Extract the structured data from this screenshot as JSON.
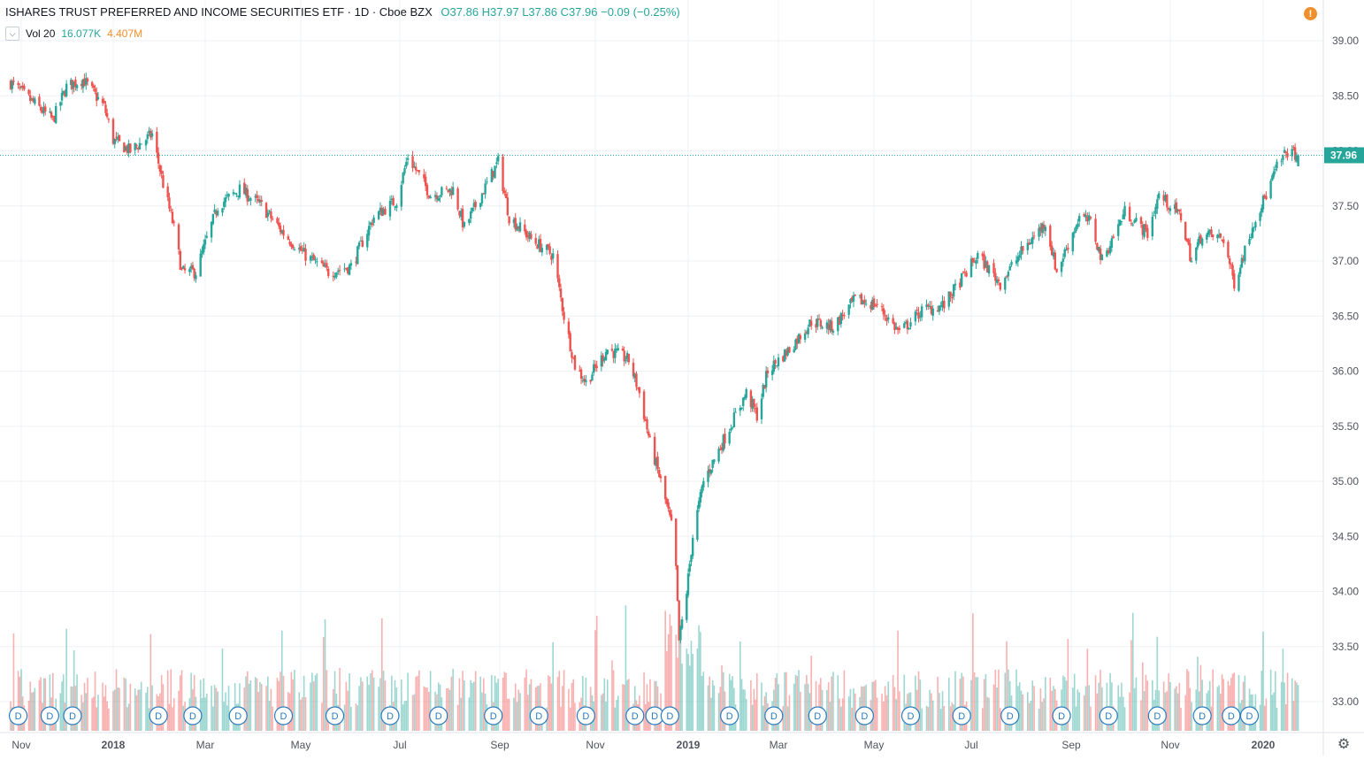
{
  "header": {
    "title": "ISHARES TRUST PREFERRED AND INCOME SECURITIES ETF · 1D · Cboe BZX",
    "ohlc": "O37.86  H37.97  L37.86  C37.96  −0.09 (−0.25%)"
  },
  "volume_indicator": {
    "label": "Vol 20",
    "value_1": "16.077K",
    "value_2": "4.407M"
  },
  "current_price_label": "37.96",
  "colors": {
    "up": "#26a69a",
    "down": "#ef5350",
    "price_line": "#26a69a",
    "event_marker": "#2a7bbd",
    "alert": "#f0902c"
  },
  "icons": {
    "alert": "alert-icon",
    "settings": "gear-icon",
    "toggle": "chevron-down-icon"
  },
  "event_marker_letter": "D",
  "chart_data": {
    "type": "candlestick",
    "title": "ISHARES TRUST PREFERRED AND INCOME SECURITIES ETF",
    "interval": "1D",
    "exchange": "Cboe BZX",
    "last": {
      "open": 37.86,
      "high": 37.97,
      "low": 37.86,
      "close": 37.96,
      "change": -0.09,
      "change_pct": -0.25
    },
    "y_ticks": [
      "39.00",
      "38.50",
      "38.00",
      "37.50",
      "37.00",
      "36.50",
      "36.00",
      "35.50",
      "35.00",
      "34.50",
      "34.00",
      "33.50",
      "33.00"
    ],
    "ylim": [
      32.8,
      39.2
    ],
    "x_ticks": [
      "Nov",
      "2018",
      "Mar",
      "May",
      "Jul",
      "Sep",
      "Nov",
      "2019",
      "Mar",
      "May",
      "Jul",
      "Sep",
      "Nov",
      "2020"
    ],
    "x_tick_dates": [
      "2017-11-01",
      "2018-01-01",
      "2018-03-01",
      "2018-05-01",
      "2018-07-01",
      "2018-09-01",
      "2018-11-01",
      "2019-01-01",
      "2019-03-01",
      "2019-05-01",
      "2019-07-01",
      "2019-09-01",
      "2019-11-01",
      "2020-01-01"
    ],
    "xlim": [
      "2017-10-25",
      "2020-01-28"
    ],
    "close_series": [
      [
        "2017-10-25",
        38.62
      ],
      [
        "2017-11-08",
        38.45
      ],
      [
        "2017-11-22",
        38.28
      ],
      [
        "2017-12-01",
        38.58
      ],
      [
        "2017-12-12",
        38.65
      ],
      [
        "2017-12-26",
        38.4
      ],
      [
        "2018-01-01",
        38.1
      ],
      [
        "2018-01-12",
        38.0
      ],
      [
        "2018-01-26",
        38.15
      ],
      [
        "2018-02-02",
        37.7
      ],
      [
        "2018-02-09",
        37.3
      ],
      [
        "2018-02-14",
        36.9
      ],
      [
        "2018-02-23",
        36.9
      ],
      [
        "2018-03-09",
        37.5
      ],
      [
        "2018-03-23",
        37.65
      ],
      [
        "2018-04-06",
        37.5
      ],
      [
        "2018-04-20",
        37.25
      ],
      [
        "2018-05-04",
        37.05
      ],
      [
        "2018-05-18",
        36.9
      ],
      [
        "2018-06-01",
        36.95
      ],
      [
        "2018-06-15",
        37.4
      ],
      [
        "2018-06-29",
        37.55
      ],
      [
        "2018-07-06",
        37.95
      ],
      [
        "2018-07-20",
        37.6
      ],
      [
        "2018-08-03",
        37.65
      ],
      [
        "2018-08-10",
        37.3
      ],
      [
        "2018-08-24",
        37.7
      ],
      [
        "2018-08-31",
        37.9
      ],
      [
        "2018-09-07",
        37.4
      ],
      [
        "2018-09-21",
        37.2
      ],
      [
        "2018-10-05",
        37.05
      ],
      [
        "2018-10-12",
        36.5
      ],
      [
        "2018-10-19",
        36.05
      ],
      [
        "2018-10-26",
        35.9
      ],
      [
        "2018-11-09",
        36.2
      ],
      [
        "2018-11-23",
        36.1
      ],
      [
        "2018-11-30",
        35.8
      ],
      [
        "2018-12-07",
        35.35
      ],
      [
        "2018-12-14",
        35.0
      ],
      [
        "2018-12-21",
        34.6
      ],
      [
        "2018-12-24",
        34.2
      ],
      [
        "2018-12-26",
        33.55
      ],
      [
        "2018-12-31",
        34.0
      ],
      [
        "2019-01-04",
        34.5
      ],
      [
        "2019-01-11",
        35.0
      ],
      [
        "2019-01-25",
        35.4
      ],
      [
        "2019-02-08",
        35.8
      ],
      [
        "2019-02-15",
        35.6
      ],
      [
        "2019-02-22",
        36.0
      ],
      [
        "2019-03-08",
        36.2
      ],
      [
        "2019-03-22",
        36.45
      ],
      [
        "2019-04-05",
        36.4
      ],
      [
        "2019-04-19",
        36.65
      ],
      [
        "2019-05-03",
        36.6
      ],
      [
        "2019-05-17",
        36.35
      ],
      [
        "2019-05-31",
        36.55
      ],
      [
        "2019-06-14",
        36.6
      ],
      [
        "2019-06-28",
        36.9
      ],
      [
        "2019-07-05",
        37.05
      ],
      [
        "2019-07-19",
        36.8
      ],
      [
        "2019-08-02",
        37.1
      ],
      [
        "2019-08-16",
        37.35
      ],
      [
        "2019-08-23",
        36.9
      ],
      [
        "2019-09-06",
        37.4
      ],
      [
        "2019-09-13",
        37.35
      ],
      [
        "2019-09-20",
        37.0
      ],
      [
        "2019-10-04",
        37.45
      ],
      [
        "2019-10-18",
        37.25
      ],
      [
        "2019-10-25",
        37.6
      ],
      [
        "2019-11-08",
        37.4
      ],
      [
        "2019-11-15",
        37.0
      ],
      [
        "2019-11-22",
        37.25
      ],
      [
        "2019-12-06",
        37.2
      ],
      [
        "2019-12-13",
        36.8
      ],
      [
        "2019-12-27",
        37.4
      ],
      [
        "2020-01-03",
        37.6
      ],
      [
        "2020-01-10",
        37.85
      ],
      [
        "2020-01-17",
        38.0
      ],
      [
        "2020-01-24",
        37.96
      ]
    ],
    "volume_max_label_free": true,
    "event_markers": [
      "2017-10-30",
      "2017-11-20",
      "2017-12-05",
      "2018-01-30",
      "2018-02-21",
      "2018-03-22",
      "2018-04-20",
      "2018-05-22",
      "2018-06-25",
      "2018-07-25",
      "2018-08-28",
      "2018-09-26",
      "2018-10-26",
      "2018-11-27",
      "2018-12-10",
      "2018-12-20",
      "2019-01-28",
      "2019-02-26",
      "2019-03-26",
      "2019-04-25",
      "2019-05-24",
      "2019-06-25",
      "2019-07-25",
      "2019-08-26",
      "2019-09-24",
      "2019-10-24",
      "2019-11-22",
      "2019-12-11",
      "2019-12-23"
    ],
    "grid": true,
    "price_scale_side": "right"
  }
}
